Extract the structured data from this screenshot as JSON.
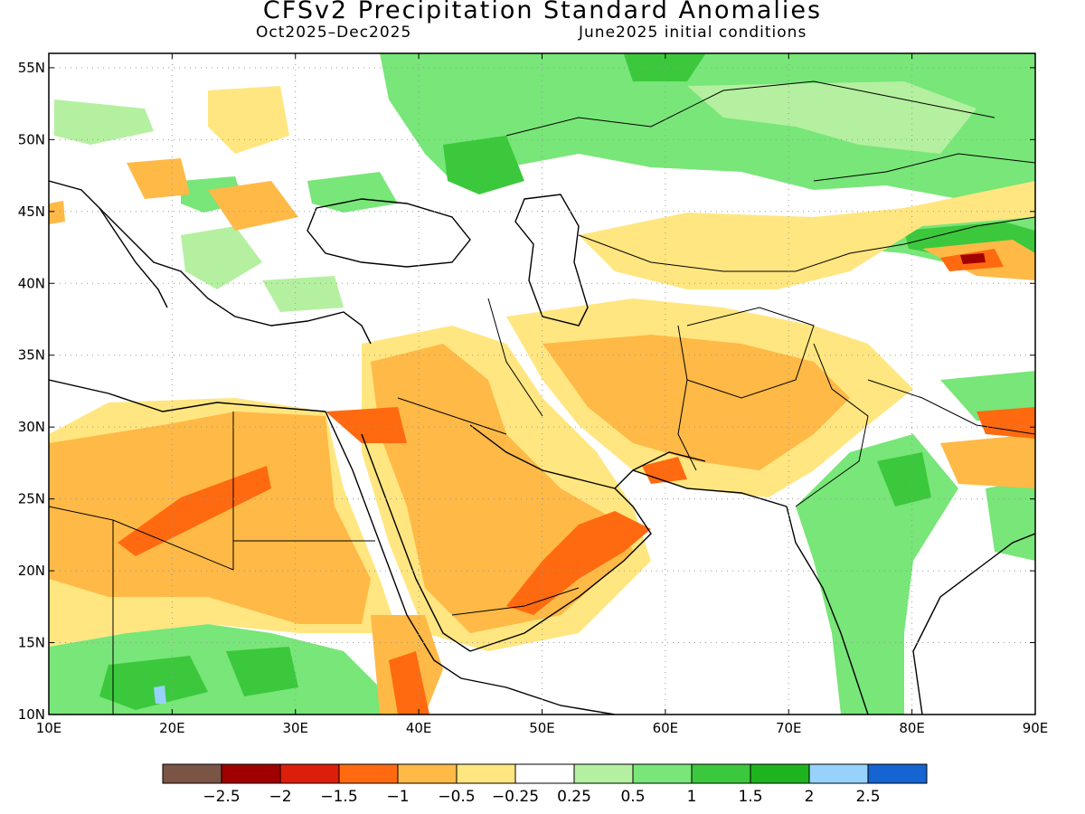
{
  "title": "CFSv2 Precipitation Standard Anomalies",
  "period": "Oct2025–Dec2025",
  "init": "June2025 initial conditions",
  "lon_ticks": [
    "10E",
    "20E",
    "30E",
    "40E",
    "50E",
    "60E",
    "70E",
    "80E",
    "90E"
  ],
  "lat_ticks": [
    "55N",
    "50N",
    "45N",
    "40N",
    "35N",
    "30N",
    "25N",
    "20N",
    "15N",
    "10N"
  ],
  "colorbar": {
    "colors": [
      "#7a5445",
      "#a00000",
      "#dc1e0a",
      "#ff6a10",
      "#ffb946",
      "#ffe680",
      "#ffffff",
      "#b4f0a0",
      "#78e678",
      "#3cc83c",
      "#1eb41e",
      "#96d2fa",
      "#1464d2"
    ],
    "labels": [
      "−2.5",
      "−2",
      "−1.5",
      "−1",
      "−0.5",
      "−0.25",
      "0.25",
      "0.5",
      "1",
      "1.5",
      "2",
      "2.5"
    ]
  },
  "chart_data": {
    "type": "heatmap",
    "title": "CFSv2 Precipitation Standard Anomalies",
    "xlabel": "",
    "ylabel": "",
    "x_range": [
      10,
      90
    ],
    "y_range": [
      10,
      56
    ],
    "legend": "bottom",
    "grid": true
  }
}
